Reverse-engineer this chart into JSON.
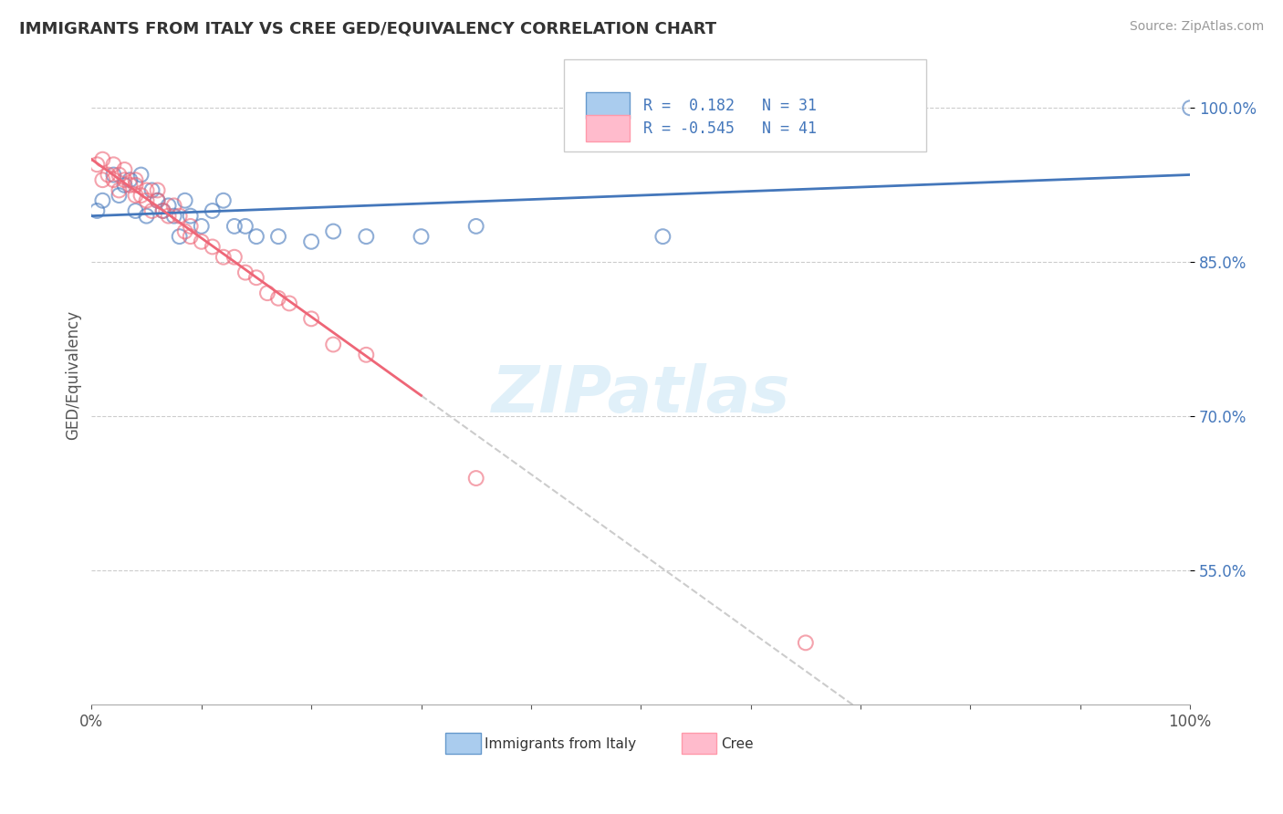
{
  "title": "IMMIGRANTS FROM ITALY VS CREE GED/EQUIVALENCY CORRELATION CHART",
  "source": "Source: ZipAtlas.com",
  "ylabel": "GED/Equivalency",
  "watermark": "ZIPatlas",
  "legend": [
    {
      "label": "Immigrants from Italy",
      "R": 0.182,
      "N": 31,
      "color": "#6699cc",
      "line_color": "#4477bb",
      "patch_face": "#aaccee",
      "patch_edge": "#6699cc"
    },
    {
      "label": "Cree",
      "R": -0.545,
      "N": 41,
      "color": "#ff99aa",
      "line_color": "#ee6677",
      "patch_face": "#ffbbcc",
      "patch_edge": "#ff99aa"
    }
  ],
  "italy_x": [
    0.005,
    0.01,
    0.02,
    0.025,
    0.03,
    0.035,
    0.04,
    0.045,
    0.05,
    0.055,
    0.06,
    0.065,
    0.07,
    0.075,
    0.08,
    0.085,
    0.09,
    0.1,
    0.11,
    0.12,
    0.13,
    0.14,
    0.15,
    0.17,
    0.2,
    0.22,
    0.25,
    0.3,
    0.35,
    0.52,
    1.0
  ],
  "italy_y": [
    0.9,
    0.91,
    0.935,
    0.915,
    0.925,
    0.93,
    0.9,
    0.935,
    0.895,
    0.92,
    0.91,
    0.9,
    0.905,
    0.895,
    0.875,
    0.91,
    0.895,
    0.885,
    0.9,
    0.91,
    0.885,
    0.885,
    0.875,
    0.875,
    0.87,
    0.88,
    0.875,
    0.875,
    0.885,
    0.875,
    1.0
  ],
  "cree_x": [
    0.005,
    0.01,
    0.01,
    0.015,
    0.02,
    0.02,
    0.025,
    0.025,
    0.03,
    0.03,
    0.035,
    0.04,
    0.04,
    0.04,
    0.045,
    0.05,
    0.05,
    0.055,
    0.06,
    0.06,
    0.065,
    0.07,
    0.075,
    0.08,
    0.085,
    0.09,
    0.09,
    0.1,
    0.11,
    0.12,
    0.13,
    0.14,
    0.15,
    0.16,
    0.17,
    0.18,
    0.2,
    0.22,
    0.25,
    0.35,
    0.65
  ],
  "cree_y": [
    0.945,
    0.95,
    0.93,
    0.935,
    0.945,
    0.93,
    0.935,
    0.92,
    0.94,
    0.93,
    0.925,
    0.925,
    0.915,
    0.93,
    0.915,
    0.92,
    0.91,
    0.9,
    0.91,
    0.92,
    0.9,
    0.895,
    0.905,
    0.895,
    0.88,
    0.885,
    0.875,
    0.87,
    0.865,
    0.855,
    0.855,
    0.84,
    0.835,
    0.82,
    0.815,
    0.81,
    0.795,
    0.77,
    0.76,
    0.64,
    0.48
  ],
  "yticks": [
    0.55,
    0.7,
    0.85,
    1.0
  ],
  "ytick_labels": [
    "55.0%",
    "70.0%",
    "85.0%",
    "100.0%"
  ],
  "ymin": 0.42,
  "ymax": 1.06,
  "xmin": 0.0,
  "xmax": 1.0,
  "title_color": "#333333",
  "source_color": "#999999",
  "italy_line_color": "#4477bb",
  "cree_line_color": "#ee6677",
  "cree_dash_color": "#cccccc",
  "background_color": "#ffffff",
  "grid_color": "#cccccc"
}
